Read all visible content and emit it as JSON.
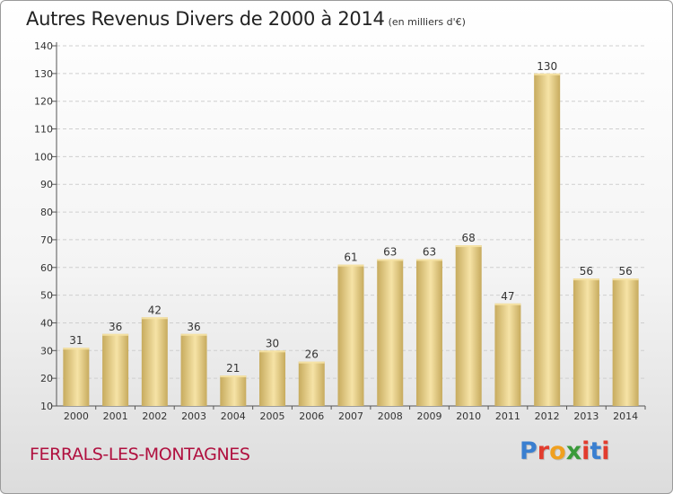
{
  "header": {
    "title": "Autres Revenus Divers de 2000 à 2014",
    "subtitle": "(en milliers d'€)"
  },
  "footer": {
    "commune": "FERRALS-LES-MONTAGNES",
    "logo_text": "Proxiti",
    "logo_colors": [
      "#3a7fd0",
      "#e23c2e",
      "#f0a020",
      "#3a9a3a",
      "#e23c2e",
      "#3a7fd0",
      "#e23c2e"
    ]
  },
  "colors": {
    "bar_light": "#f6e3a6",
    "bar_dark": "#c7ab5e",
    "grid": "#cfcfcf",
    "title": "#b0103f"
  },
  "chart_data": {
    "type": "bar",
    "categories": [
      "2000",
      "2001",
      "2002",
      "2003",
      "2004",
      "2005",
      "2006",
      "2007",
      "2008",
      "2009",
      "2010",
      "2011",
      "2012",
      "2013",
      "2014"
    ],
    "values": [
      31,
      36,
      42,
      36,
      21,
      30,
      26,
      61,
      63,
      63,
      68,
      47,
      130,
      56,
      56
    ],
    "title": "Autres Revenus Divers de 2000 à 2014",
    "subtitle": "(en milliers d'€)",
    "xlabel": "",
    "ylabel": "",
    "ylim": [
      10,
      140
    ],
    "yticks": [
      10,
      20,
      30,
      40,
      50,
      60,
      70,
      80,
      90,
      100,
      110,
      120,
      130,
      140
    ],
    "grid": true,
    "data_labels": true
  }
}
